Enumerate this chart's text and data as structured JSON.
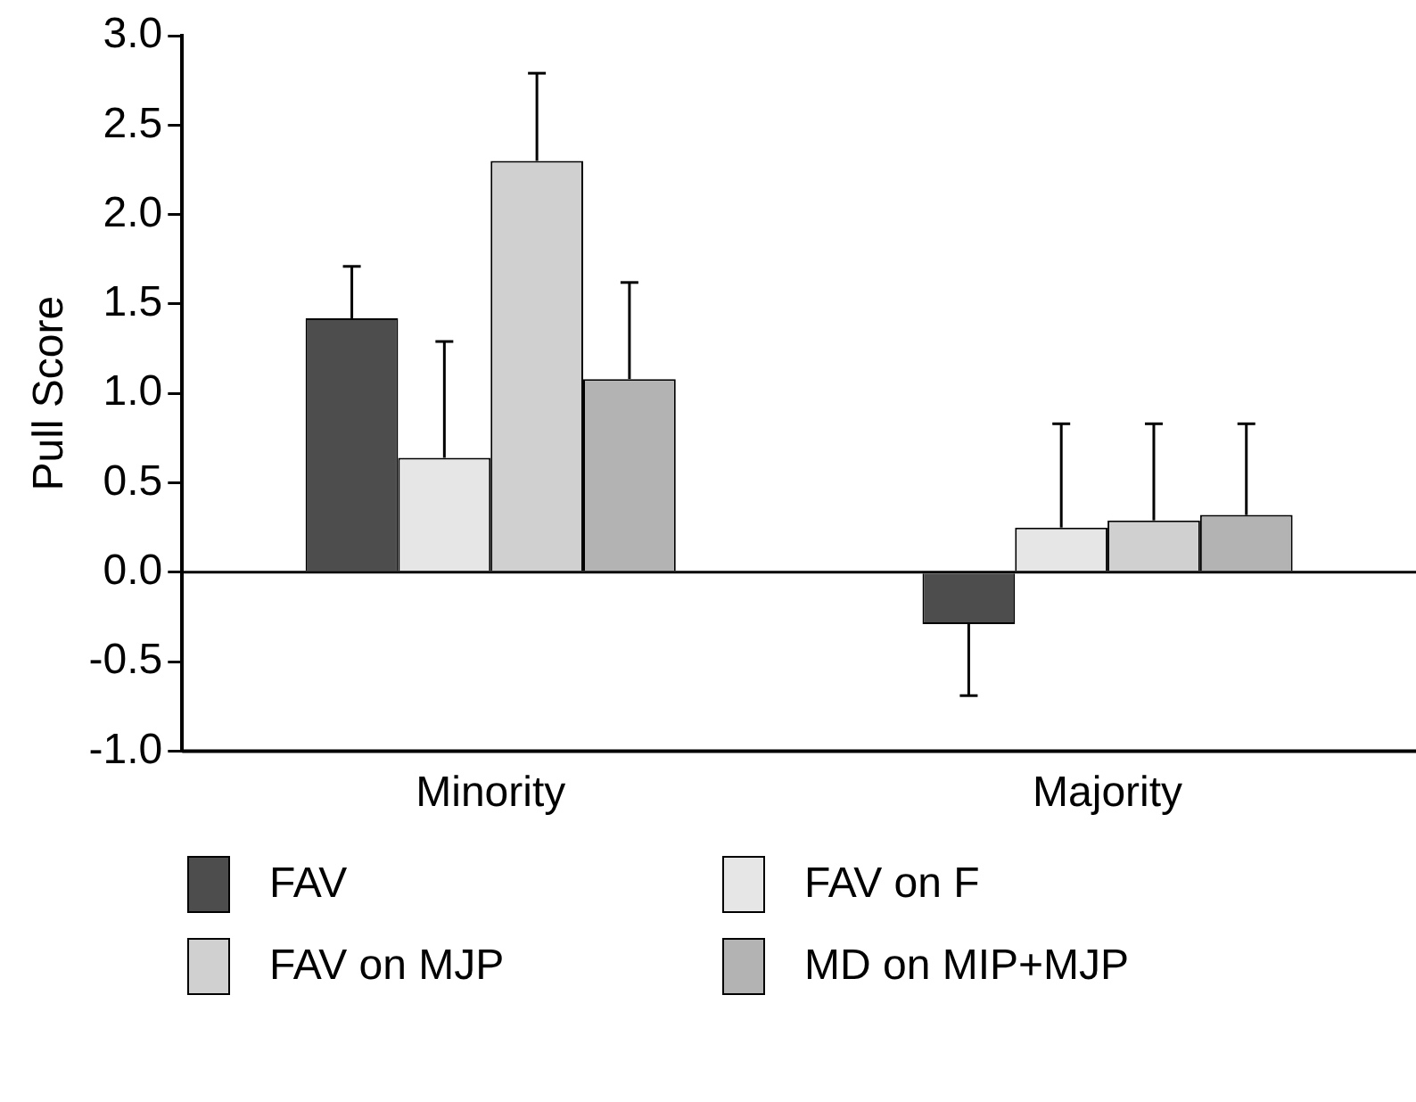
{
  "chart_data": {
    "type": "bar",
    "ylabel": "Pull Score",
    "categories": [
      "Minority",
      "Majority"
    ],
    "series": [
      {
        "name": "FAV",
        "color": "#4d4d4d",
        "values": [
          1.42,
          -0.29
        ],
        "errors": [
          [
            1.42,
            1.71
          ],
          [
            -0.69,
            -0.29
          ]
        ]
      },
      {
        "name": "FAV on F",
        "color": "#e6e6e6",
        "values": [
          0.64,
          0.25
        ],
        "errors": [
          [
            0.64,
            1.29
          ],
          [
            0.25,
            0.83
          ]
        ]
      },
      {
        "name": "FAV on MJP",
        "color": "#d0d0d0",
        "values": [
          2.3,
          0.29
        ],
        "errors": [
          [
            2.3,
            2.79
          ],
          [
            0.29,
            0.83
          ]
        ]
      },
      {
        "name": "MD on MIP+MJP",
        "color": "#b3b3b3",
        "values": [
          1.08,
          0.32
        ],
        "errors": [
          [
            1.08,
            1.62
          ],
          [
            0.32,
            0.83
          ]
        ]
      }
    ],
    "ylim": [
      -1,
      3
    ],
    "yticks": [
      {
        "value": -1,
        "label": "-1.0"
      },
      {
        "value": -0.5,
        "label": "-0.5"
      },
      {
        "value": 0,
        "label": "0.0"
      },
      {
        "value": 0.5,
        "label": "0.5"
      },
      {
        "value": 1,
        "label": "1.0"
      },
      {
        "value": 1.5,
        "label": "1.5"
      },
      {
        "value": 2,
        "label": "2.0"
      },
      {
        "value": 2.5,
        "label": "2.5"
      },
      {
        "value": 3,
        "label": "3.0"
      }
    ],
    "ref_lines": [
      {
        "axis": "y",
        "value": 0,
        "color": "#000000"
      }
    ],
    "grid": false,
    "legend": "bottom"
  }
}
